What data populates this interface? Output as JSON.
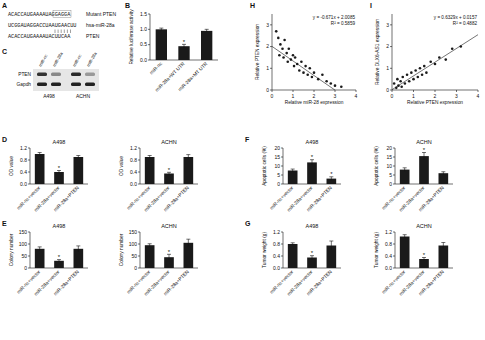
{
  "chart_data": [
    {
      "panel": "B",
      "type": "bar",
      "y_label": "Relative luciferase activity",
      "categories": [
        "miR-nc",
        "miR-28a+WT UTR",
        "miR-28a+MT UTR"
      ],
      "values": [
        1.0,
        0.45,
        0.95
      ],
      "errors": [
        0.04,
        0.06,
        0.05
      ],
      "significance": [
        null,
        "*",
        null
      ],
      "color": "#1a1a1a",
      "ylim": [
        0,
        1.5
      ],
      "yticks": [
        {
          "value": 0,
          "label": "0.0"
        },
        0.5,
        {
          "value": 1,
          "label": "1.0"
        },
        1.5
      ]
    },
    {
      "panel": "H",
      "type": "scatter",
      "x_label": "Relative miR-28 expression",
      "y_label": "Relative PTEN expression",
      "annotations": [
        "y = -0.671x + 2.0085",
        "R² = 0.5859"
      ],
      "trendline": {
        "slope": -0.671,
        "intercept": 2.0085
      },
      "x": [
        0.2,
        0.3,
        0.35,
        0.4,
        0.5,
        0.55,
        0.6,
        0.7,
        0.75,
        0.8,
        0.9,
        1.0,
        1.05,
        1.1,
        1.2,
        1.3,
        1.4,
        1.5,
        1.6,
        1.7,
        1.8,
        1.9,
        2.0,
        2.2,
        2.4,
        2.6,
        2.8,
        3.0,
        3.3
      ],
      "y": [
        2.7,
        2.4,
        1.6,
        2.1,
        1.9,
        1.5,
        2.3,
        1.7,
        1.3,
        1.9,
        1.4,
        1.6,
        1.1,
        1.5,
        1.2,
        0.9,
        1.3,
        0.8,
        1.1,
        0.7,
        1.0,
        0.6,
        0.8,
        0.5,
        0.7,
        0.4,
        0.3,
        0.2,
        0.15
      ],
      "color": "#1a1a1a",
      "xlim": [
        0,
        4
      ],
      "xticks": [
        0,
        1,
        2,
        3,
        4
      ],
      "ylim": [
        0,
        3.5
      ],
      "yticks": [
        0,
        1,
        2,
        3
      ]
    },
    {
      "panel": "I",
      "type": "scatter",
      "x_label": "Relative PTEN expression",
      "y_label": "Relative DLX6-AS1 expression",
      "annotations": [
        "y = 0.6329x + 0.0157",
        "R² = 0.4882"
      ],
      "trendline": {
        "slope": 0.6329,
        "intercept": 0.0157
      },
      "x": [
        0.1,
        0.2,
        0.25,
        0.3,
        0.4,
        0.45,
        0.5,
        0.6,
        0.7,
        0.8,
        0.9,
        1.0,
        1.1,
        1.2,
        1.3,
        1.4,
        1.5,
        1.6,
        1.8,
        2.0,
        2.2,
        2.5,
        2.8,
        3.2
      ],
      "y": [
        0.3,
        0.1,
        0.5,
        0.2,
        0.4,
        0.15,
        0.6,
        0.3,
        0.7,
        0.4,
        0.8,
        0.5,
        0.9,
        0.6,
        1.0,
        0.7,
        1.1,
        0.8,
        1.3,
        1.2,
        1.5,
        1.4,
        1.9,
        2.0
      ],
      "color": "#1a1a1a",
      "xlim": [
        0,
        4
      ],
      "xticks": [
        0,
        1,
        2,
        3,
        4
      ],
      "ylim": [
        0,
        3.5
      ],
      "yticks": [
        0,
        1,
        2,
        3
      ]
    },
    {
      "panel": "D",
      "type": "bar",
      "title": "A498",
      "y_label": "OD value",
      "categories": [
        "miR-nc+vector",
        "miR-28a+vector",
        "miR-28a+PTEN"
      ],
      "values": [
        1.0,
        0.4,
        0.9
      ],
      "errors": [
        0.05,
        0.05,
        0.05
      ],
      "significance": [
        null,
        "*",
        null
      ],
      "color": "#1a1a1a",
      "ylim": [
        0,
        1.2
      ],
      "yticks": [
        {
          "value": 0,
          "label": "0.0"
        },
        0.4,
        0.8,
        1.2
      ]
    },
    {
      "type": "bar",
      "title": "ACHN",
      "y_label": "OD value",
      "categories": [
        "miR-nc+vector",
        "miR-28a+vector",
        "miR-28a+PTEN"
      ],
      "values": [
        0.9,
        0.35,
        0.9
      ],
      "errors": [
        0.05,
        0.04,
        0.08
      ],
      "significance": [
        null,
        "*",
        null
      ],
      "color": "#1a1a1a",
      "ylim": [
        0,
        1.2
      ],
      "yticks": [
        {
          "value": 0,
          "label": "0.0"
        },
        0.4,
        0.8,
        1.2
      ]
    },
    {
      "panel": "F",
      "type": "bar",
      "title": "A498",
      "y_label": "Apoptotic cells (%)",
      "categories": [
        "miR-nc+vector",
        "miR-28a+vector",
        "miR-28a+PTEN"
      ],
      "values": [
        7.5,
        12,
        3
      ],
      "errors": [
        0.8,
        1.5,
        1
      ],
      "significance": [
        null,
        "*",
        "*"
      ],
      "color": "#1a1a1a",
      "ylim": [
        0,
        20
      ],
      "yticks": [
        0,
        5,
        10,
        15,
        20
      ]
    },
    {
      "type": "bar",
      "title": "ACHN",
      "y_label": "Apoptotic cells (%)",
      "categories": [
        "miR-nc+vector",
        "miR-28a+vector",
        "miR-28a+PTEN"
      ],
      "values": [
        8,
        15.5,
        6
      ],
      "errors": [
        1,
        2,
        0.8
      ],
      "significance": [
        null,
        "*",
        null
      ],
      "color": "#1a1a1a",
      "ylim": [
        0,
        20
      ],
      "yticks": [
        0,
        5,
        10,
        15,
        20
      ]
    },
    {
      "panel": "E",
      "type": "bar",
      "title": "A498",
      "y_label": "Colony number",
      "categories": [
        "miR-nc+vector",
        "miR-28a+vector",
        "miR-28a+PTEN"
      ],
      "values": [
        80,
        30,
        80
      ],
      "errors": [
        8,
        5,
        12
      ],
      "significance": [
        null,
        "*",
        null
      ],
      "color": "#1a1a1a",
      "ylim": [
        0,
        150
      ],
      "yticks": [
        0,
        50,
        100,
        150
      ]
    },
    {
      "type": "bar",
      "title": "ACHN",
      "y_label": "Colony number",
      "categories": [
        "miR-nc+vector",
        "miR-28a+vector",
        "miR-28a+PTEN"
      ],
      "values": [
        95,
        45,
        105
      ],
      "errors": [
        6,
        12,
        15
      ],
      "significance": [
        null,
        "*",
        null
      ],
      "color": "#1a1a1a",
      "ylim": [
        0,
        150
      ],
      "yticks": [
        0,
        50,
        100,
        150
      ]
    },
    {
      "panel": "G",
      "type": "bar",
      "title": "A498",
      "y_label": "Tumor weight (g)",
      "categories": [
        "miR-nc+vector",
        "miR-28a+vector",
        "miR-28a+PTEN"
      ],
      "values": [
        0.8,
        0.35,
        0.75
      ],
      "errors": [
        0.04,
        0.06,
        0.15
      ],
      "significance": [
        null,
        "*",
        null
      ],
      "color": "#1a1a1a",
      "ylim": [
        0,
        1.2
      ],
      "yticks": [
        {
          "value": 0,
          "label": "0.0"
        },
        0.4,
        0.8,
        1.2
      ]
    },
    {
      "type": "bar",
      "title": "ACHN",
      "y_label": "Tumor weight (g)",
      "categories": [
        "miR-nc+vector",
        "miR-28a+vector",
        "miR-28a+PTEN"
      ],
      "values": [
        1.05,
        0.3,
        0.75
      ],
      "errors": [
        0.06,
        0.05,
        0.1
      ],
      "significance": [
        null,
        "*",
        null
      ],
      "color": "#1a1a1a",
      "ylim": [
        0,
        1.2
      ],
      "yticks": [
        {
          "value": 0,
          "label": "0.0"
        },
        0.4,
        0.8,
        1.2
      ]
    }
  ],
  "sequence_panel": {
    "panel": "A",
    "rows": [
      {
        "sequence": "ACACCAUGAAAAUAGGAGGA",
        "label": "Mutant PTEN"
      },
      {
        "sequence": "UCGGAUAGGACCUAAUGAACUU",
        "label": "hsa-miR-28a"
      },
      {
        "sequence": "ACACCAUGAAAAUACUUCAA",
        "label": "PTEN"
      }
    ]
  },
  "blot_panel": {
    "panel": "C",
    "rows": [
      "PTEN",
      "Gapdh"
    ],
    "lanes": [
      "miR-nc",
      "miR-28a",
      "miR-nc",
      "miR-28a"
    ],
    "groups": [
      "A498",
      "ACHN"
    ]
  }
}
